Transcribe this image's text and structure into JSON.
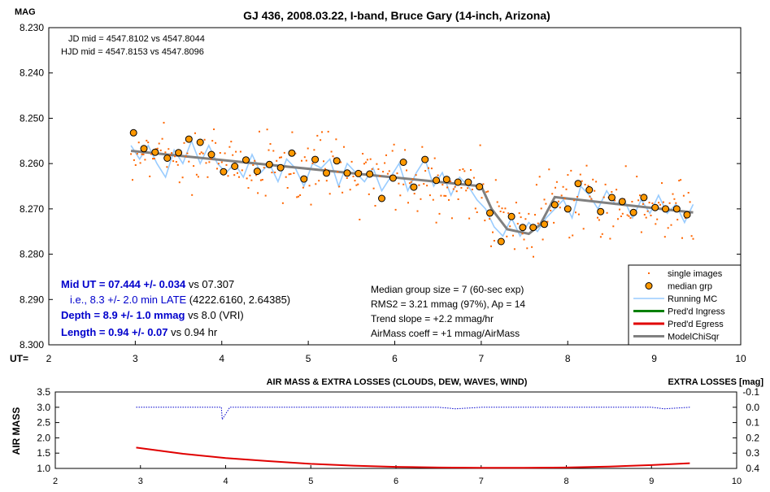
{
  "main": {
    "title": "GJ 436, 2008.03.22, I-band, Bruce Gary (14-inch, Arizona)",
    "ylabel": "MAG",
    "xlabel": "UT=",
    "ylim": [
      8.23,
      8.3
    ],
    "xlim": [
      2,
      10
    ],
    "y_ticks": [
      "8.230",
      "8.240",
      "8.250",
      "8.260",
      "8.270",
      "8.280",
      "8.290",
      "8.300"
    ],
    "y_tick_values": [
      8.23,
      8.24,
      8.25,
      8.26,
      8.27,
      8.28,
      8.29,
      8.3
    ],
    "x_ticks": [
      "2",
      "3",
      "4",
      "5",
      "6",
      "7",
      "8",
      "9",
      "10"
    ],
    "x_tick_values": [
      2,
      3,
      4,
      5,
      6,
      7,
      8,
      9,
      10
    ],
    "annotations_top": {
      "jd": "JD mid = 4547.8102 vs 4547.8044",
      "hjd": "HJD mid = 4547.8153 vs 4547.8096"
    },
    "results": {
      "mid_ut_bold": "Mid UT = 07.444 +/- 0.034",
      "mid_ut_rest": " vs 07.307",
      "late_line": "i.e., 8.3 +/- 2.0 min LATE",
      "late_rest": " (4222.6160, 2.64385)",
      "depth_bold": "Depth = 8.9 +/- 1.0 mmag",
      "depth_rest": " vs 8.0 (VRI)",
      "length_bold": "Length = 0.94 +/- 0.07",
      "length_rest": " vs 0.94 hr"
    },
    "stats": [
      "Median group size = 7 (60-sec exp)",
      "RMS2 = 3.21 mmag (97%), Ap = 14",
      "Trend slope = +2.2 mmag/hr",
      "AirMass coeff = +1 mmag/AirMass"
    ],
    "legend": [
      {
        "label": "single images",
        "color": "#ff6600",
        "kind": "dot"
      },
      {
        "label": "median grp",
        "color": "#ff9900",
        "kind": "circle"
      },
      {
        "label": "Running MC",
        "color": "#99ccff",
        "kind": "line"
      },
      {
        "label": "Pred'd Ingress",
        "color": "#008000",
        "kind": "thickline"
      },
      {
        "label": "Pred'd Egress",
        "color": "#e00000",
        "kind": "thickline"
      },
      {
        "label": "ModelChiSqr",
        "color": "#808080",
        "kind": "thickline"
      }
    ],
    "colors": {
      "single": "#ff6600",
      "median_fill": "#ff9900",
      "running": "#99ccff",
      "model": "#808080",
      "results_text": "#0000cc"
    }
  },
  "sub": {
    "title": "AIR MASS & EXTRA LOSSES (CLOUDS, DEW, WAVES, WIND)",
    "ylabel_left": "AIR MASS",
    "ylabel_right": "EXTRA LOSSES [mag]",
    "left_ticks": [
      "3.5",
      "3.0",
      "2.5",
      "2.0",
      "1.5",
      "1.0"
    ],
    "left_tick_values": [
      3.5,
      3.0,
      2.5,
      2.0,
      1.5,
      1.0
    ],
    "right_ticks": [
      "-0.1",
      "0.0",
      "0.1",
      "0.2",
      "0.3",
      "0.4"
    ],
    "right_tick_values": [
      -0.1,
      0.0,
      0.1,
      0.2,
      0.3,
      0.4
    ],
    "x_ticks": [
      "2",
      "3",
      "4",
      "5",
      "6",
      "7",
      "8",
      "9",
      "10"
    ],
    "x_tick_values": [
      2,
      3,
      4,
      5,
      6,
      7,
      8,
      9,
      10
    ],
    "xlim": [
      2,
      10
    ],
    "ylim_left": [
      1.0,
      3.5
    ],
    "ylim_right": [
      -0.1,
      0.4
    ],
    "colors": {
      "airmass": "#e00000",
      "losses": "#0000cc"
    }
  },
  "chart_data": [
    {
      "type": "scatter",
      "title": "GJ 436, 2008.03.22, I-band, Bruce Gary (14-inch, Arizona)",
      "xlabel": "UT=",
      "ylabel": "MAG",
      "xlim": [
        2,
        10
      ],
      "ylim": [
        8.3,
        8.23
      ],
      "y_inverted": true,
      "series": [
        {
          "name": "median grp",
          "x": [
            2.98,
            3.1,
            3.23,
            3.37,
            3.5,
            3.62,
            3.75,
            3.88,
            4.02,
            4.15,
            4.28,
            4.41,
            4.55,
            4.68,
            4.81,
            4.95,
            5.08,
            5.21,
            5.33,
            5.45,
            5.58,
            5.71,
            5.85,
            5.98,
            6.1,
            6.22,
            6.35,
            6.48,
            6.6,
            6.73,
            6.85,
            6.98,
            7.1,
            7.23,
            7.35,
            7.48,
            7.6,
            7.73,
            7.85,
            8.0,
            8.12,
            8.25,
            8.38,
            8.51,
            8.63,
            8.76,
            8.88,
            9.01,
            9.13,
            9.26,
            9.38
          ],
          "y": [
            8.2532,
            8.2567,
            8.2575,
            8.2588,
            8.2576,
            8.2546,
            8.2553,
            8.258,
            8.2618,
            8.2606,
            8.2592,
            8.2617,
            8.2602,
            8.2609,
            8.2577,
            8.2634,
            8.2591,
            8.2621,
            8.2594,
            8.2621,
            8.2622,
            8.2623,
            8.2677,
            8.2632,
            8.2597,
            8.2652,
            8.2591,
            8.2637,
            8.2635,
            8.2641,
            8.2641,
            8.2651,
            8.2709,
            8.2772,
            8.2717,
            8.2741,
            8.2741,
            8.2734,
            8.2691,
            8.27,
            8.2644,
            8.2658,
            8.2706,
            8.2675,
            8.2684,
            8.2708,
            8.2675,
            8.2697,
            8.27,
            8.27,
            8.2713
          ]
        },
        {
          "name": "ModelChiSqr",
          "x": [
            2.95,
            7.0,
            7.12,
            7.3,
            7.55,
            7.68,
            7.85,
            9.45
          ],
          "y": [
            8.2572,
            8.265,
            8.27,
            8.2745,
            8.2755,
            8.2735,
            8.2674,
            8.2708
          ]
        },
        {
          "name": "Running MC",
          "x": [
            2.95,
            3.05,
            3.15,
            3.25,
            3.35,
            3.45,
            3.55,
            3.65,
            3.75,
            3.85,
            3.95,
            4.05,
            4.15,
            4.25,
            4.35,
            4.45,
            4.55,
            4.65,
            4.75,
            4.85,
            4.95,
            5.05,
            5.15,
            5.25,
            5.35,
            5.45,
            5.55,
            5.65,
            5.75,
            5.85,
            5.95,
            6.05,
            6.15,
            6.25,
            6.35,
            6.45,
            6.55,
            6.65,
            6.75,
            6.85,
            6.95,
            7.05,
            7.15,
            7.25,
            7.35,
            7.45,
            7.55,
            7.65,
            7.75,
            7.85,
            7.95,
            8.05,
            8.15,
            8.25,
            8.35,
            8.45,
            8.55,
            8.65,
            8.75,
            8.85,
            8.95,
            9.05,
            9.15,
            9.25,
            9.35,
            9.45
          ],
          "y": [
            8.256,
            8.259,
            8.256,
            8.26,
            8.263,
            8.257,
            8.26,
            8.255,
            8.26,
            8.256,
            8.26,
            8.262,
            8.26,
            8.263,
            8.258,
            8.262,
            8.26,
            8.264,
            8.259,
            8.261,
            8.265,
            8.26,
            8.261,
            8.259,
            8.265,
            8.26,
            8.262,
            8.264,
            8.261,
            8.266,
            8.263,
            8.26,
            8.266,
            8.262,
            8.259,
            8.265,
            8.262,
            8.267,
            8.263,
            8.265,
            8.268,
            8.27,
            8.274,
            8.276,
            8.272,
            8.276,
            8.273,
            8.275,
            8.272,
            8.27,
            8.268,
            8.272,
            8.265,
            8.267,
            8.27,
            8.266,
            8.269,
            8.268,
            8.272,
            8.268,
            8.271,
            8.267,
            8.271,
            8.269,
            8.273,
            8.269
          ]
        }
      ]
    },
    {
      "type": "line",
      "title": "AIR MASS & EXTRA LOSSES (CLOUDS, DEW, WAVES, WIND)",
      "xlim": [
        2,
        10
      ],
      "series": [
        {
          "name": "AIR MASS",
          "x": [
            2.95,
            3.5,
            4.0,
            4.5,
            5.0,
            5.5,
            6.0,
            6.5,
            7.0,
            7.5,
            8.0,
            8.5,
            9.0,
            9.45
          ],
          "y": [
            1.68,
            1.48,
            1.34,
            1.24,
            1.15,
            1.09,
            1.05,
            1.03,
            1.02,
            1.02,
            1.03,
            1.06,
            1.11,
            1.17
          ]
        },
        {
          "name": "EXTRA LOSSES",
          "x": [
            2.95,
            3.5,
            3.95,
            3.96,
            4.05,
            4.5,
            5.0,
            5.5,
            6.0,
            6.5,
            6.7,
            7.0,
            7.5,
            8.0,
            8.5,
            9.0,
            9.15,
            9.45
          ],
          "y": [
            0.0,
            0.0,
            0.0,
            0.08,
            0.0,
            0.0,
            0.0,
            0.0,
            0.0,
            0.0,
            0.01,
            0.0,
            0.0,
            0.0,
            0.0,
            0.0,
            0.01,
            0.0
          ]
        }
      ]
    }
  ]
}
